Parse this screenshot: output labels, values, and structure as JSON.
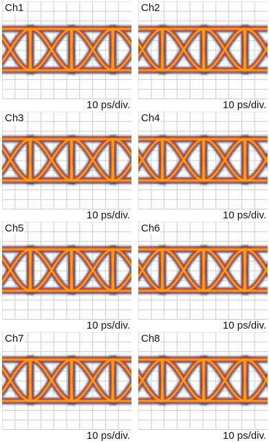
{
  "panels": [
    {
      "channel": "Ch1",
      "scale": "10 ps/div."
    },
    {
      "channel": "Ch2",
      "scale": "10 ps/div."
    },
    {
      "channel": "Ch3",
      "scale": "10 ps/div."
    },
    {
      "channel": "Ch4",
      "scale": "10 ps/div."
    },
    {
      "channel": "Ch5",
      "scale": "10 ps/div."
    },
    {
      "channel": "Ch6",
      "scale": "10 ps/div."
    },
    {
      "channel": "Ch7",
      "scale": "10 ps/div."
    },
    {
      "channel": "Ch8",
      "scale": "10 ps/div."
    }
  ],
  "colors": {
    "grid": "#c7cec7",
    "trace_hot": "#f0a018",
    "trace_mid": "#d0402a",
    "trace_edge": "#4a3a9a",
    "halo": "#7fb08a",
    "background": "#ffffff"
  }
}
